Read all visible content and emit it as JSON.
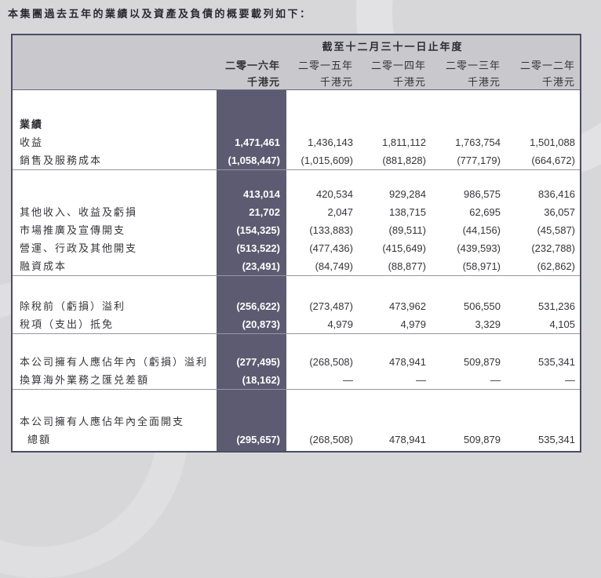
{
  "intro": "本集團過去五年的業績以及資產及負債的概要載列如下：",
  "colors": {
    "highlight_column": "#5c5b71",
    "header_band": "#c9c8cd",
    "table_border": "#4c4c64",
    "page_background": "#d7d6d9"
  },
  "table": {
    "period_header": "截至十二月三十一日止年度",
    "columns": [
      {
        "year": "二零一六年",
        "unit": "千港元",
        "highlight": true
      },
      {
        "year": "二零一五年",
        "unit": "千港元",
        "highlight": false
      },
      {
        "year": "二零一四年",
        "unit": "千港元",
        "highlight": false
      },
      {
        "year": "二零一三年",
        "unit": "千港元",
        "highlight": false
      },
      {
        "year": "二零一二年",
        "unit": "千港元",
        "highlight": false
      }
    ],
    "sections": [
      {
        "rows": [
          {
            "label": "業績",
            "values": [
              "",
              "",
              "",
              "",
              ""
            ]
          },
          {
            "label": "收益",
            "values": [
              "1,471,461",
              "1,436,143",
              "1,811,112",
              "1,763,754",
              "1,501,088"
            ]
          },
          {
            "label": "銷售及服務成本",
            "values": [
              "(1,058,447)",
              "(1,015,609)",
              "(881,828)",
              "(777,179)",
              "(664,672)"
            ]
          }
        ]
      },
      {
        "rows": [
          {
            "label": "",
            "values": [
              "413,014",
              "420,534",
              "929,284",
              "986,575",
              "836,416"
            ]
          },
          {
            "label": "其他收入、收益及虧損",
            "values": [
              "21,702",
              "2,047",
              "138,715",
              "62,695",
              "36,057"
            ]
          },
          {
            "label": "市場推廣及宣傳開支",
            "values": [
              "(154,325)",
              "(133,883)",
              "(89,511)",
              "(44,156)",
              "(45,587)"
            ]
          },
          {
            "label": "營運、行政及其他開支",
            "values": [
              "(513,522)",
              "(477,436)",
              "(415,649)",
              "(439,593)",
              "(232,788)"
            ]
          },
          {
            "label": "融資成本",
            "values": [
              "(23,491)",
              "(84,749)",
              "(88,877)",
              "(58,971)",
              "(62,862)"
            ]
          }
        ]
      },
      {
        "rows": [
          {
            "label": "除稅前（虧損）溢利",
            "values": [
              "(256,622)",
              "(273,487)",
              "473,962",
              "506,550",
              "531,236"
            ]
          },
          {
            "label": "稅項（支出）抵免",
            "values": [
              "(20,873)",
              "4,979",
              "4,979",
              "3,329",
              "4,105"
            ]
          }
        ]
      },
      {
        "rows": [
          {
            "label": "本公司擁有人應佔年內（虧損）溢利",
            "values": [
              "(277,495)",
              "(268,508)",
              "478,941",
              "509,879",
              "535,341"
            ]
          },
          {
            "label": "換算海外業務之匯兑差額",
            "values": [
              "(18,162)",
              "—",
              "—",
              "—",
              "—"
            ]
          }
        ]
      },
      {
        "rows": [
          {
            "label": "本公司擁有人應佔年內全面開支",
            "values": [
              "",
              "",
              "",
              "",
              ""
            ]
          },
          {
            "label": "總額",
            "values": [
              "(295,657)",
              "(268,508)",
              "478,941",
              "509,879",
              "535,341"
            ]
          }
        ]
      }
    ]
  }
}
